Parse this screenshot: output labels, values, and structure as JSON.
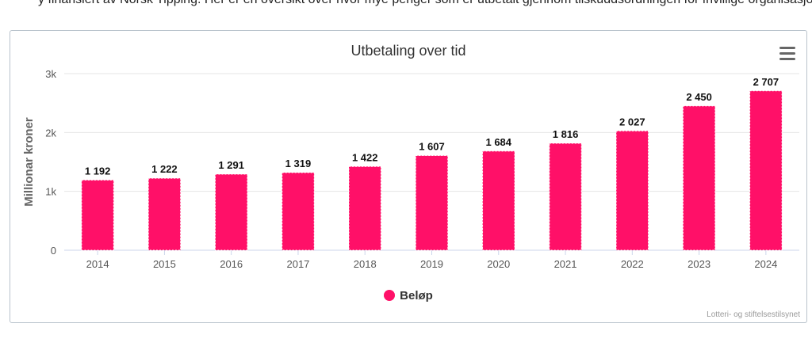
{
  "header_fragment": "y finansiert av Norsk Tipping. Her er en oversikt over hvor mye penger som er utbetalt gjennom tilskuddsordningen for frivillige organisasjoner og momskompensasjon per år.",
  "chart_menu_icon": "hamburger-menu-icon",
  "credit": "Lotteri- og stiftelsestilsynet",
  "colors": {
    "bar": "#ff1068",
    "grid": "#e6e6e6",
    "axis": "#ccd6eb"
  },
  "chart_data": {
    "type": "bar",
    "title": "Utbetaling over tid",
    "xlabel": "",
    "ylabel": "Millionar kroner",
    "categories": [
      "2014",
      "2015",
      "2016",
      "2017",
      "2018",
      "2019",
      "2020",
      "2021",
      "2022",
      "2023",
      "2024"
    ],
    "series": [
      {
        "name": "Beløp",
        "values": [
          1192,
          1222,
          1291,
          1319,
          1422,
          1607,
          1684,
          1816,
          2027,
          2450,
          2707
        ]
      }
    ],
    "data_labels": [
      "1 192",
      "1 222",
      "1 291",
      "1 319",
      "1 422",
      "1 607",
      "1 684",
      "1 816",
      "2 027",
      "2 450",
      "2 707"
    ],
    "ylim": [
      0,
      3000
    ],
    "yticks": [
      0,
      1000,
      2000,
      3000
    ],
    "ytick_labels": [
      "0",
      "1k",
      "2k",
      "3k"
    ],
    "grid": true,
    "legend": "bottom-center"
  }
}
